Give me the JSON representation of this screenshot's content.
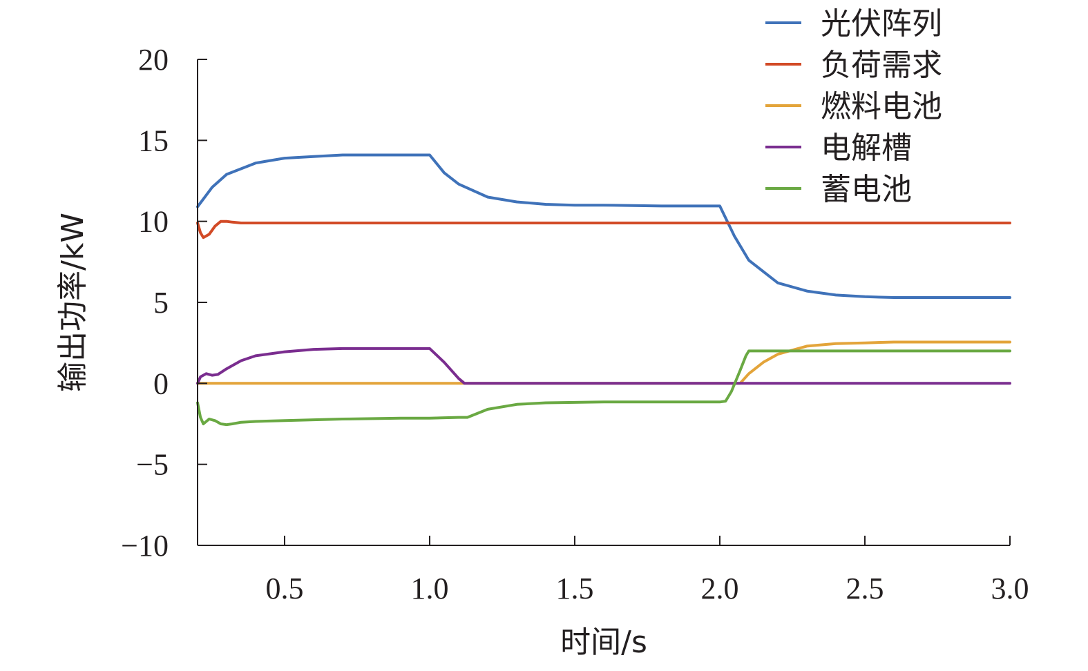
{
  "chart_data": {
    "type": "line",
    "xlabel": "时间/s",
    "ylabel": "输出功率/kW",
    "xlim": [
      0.2,
      3.0
    ],
    "ylim": [
      -10,
      20
    ],
    "xticks": [
      "0.5",
      "1.0",
      "1.5",
      "2.0",
      "2.5",
      "3.0"
    ],
    "xtick_values": [
      0.5,
      1.0,
      1.5,
      2.0,
      2.5,
      3.0
    ],
    "yticks": [
      "−10",
      "−5",
      "0",
      "5",
      "10",
      "15",
      "20"
    ],
    "ytick_values": [
      -10,
      -5,
      0,
      5,
      10,
      15,
      20
    ],
    "grid": false,
    "legend_position": "top-right",
    "series": [
      {
        "name": "光伏阵列",
        "color": "#3f72b9",
        "x": [
          0.2,
          0.25,
          0.3,
          0.4,
          0.5,
          0.6,
          0.7,
          0.8,
          0.9,
          1.0,
          1.05,
          1.1,
          1.2,
          1.3,
          1.4,
          1.5,
          1.6,
          1.8,
          2.0,
          2.05,
          2.1,
          2.2,
          2.3,
          2.4,
          2.5,
          2.6,
          2.8,
          3.0
        ],
        "y": [
          10.9,
          12.1,
          12.9,
          13.6,
          13.9,
          14.0,
          14.1,
          14.1,
          14.1,
          14.1,
          13.0,
          12.3,
          11.5,
          11.2,
          11.05,
          11.0,
          11.0,
          10.95,
          10.95,
          9.1,
          7.6,
          6.2,
          5.7,
          5.45,
          5.35,
          5.3,
          5.3,
          5.3
        ]
      },
      {
        "name": "负荷需求",
        "color": "#d24a26",
        "x": [
          0.2,
          0.21,
          0.22,
          0.24,
          0.26,
          0.28,
          0.3,
          0.32,
          0.35,
          0.4,
          0.5,
          0.75,
          1.0,
          1.25,
          1.5,
          1.75,
          2.0,
          2.25,
          2.5,
          2.75,
          3.0
        ],
        "y": [
          9.9,
          9.3,
          9.0,
          9.2,
          9.7,
          10.0,
          10.0,
          9.95,
          9.9,
          9.9,
          9.9,
          9.9,
          9.9,
          9.9,
          9.9,
          9.9,
          9.9,
          9.9,
          9.9,
          9.9,
          9.9
        ]
      },
      {
        "name": "燃料电池",
        "color": "#e3a43a",
        "x": [
          0.2,
          1.0,
          1.5,
          2.0,
          2.07,
          2.1,
          2.15,
          2.2,
          2.3,
          2.4,
          2.5,
          2.6,
          2.8,
          3.0
        ],
        "y": [
          0.0,
          0.0,
          0.0,
          0.0,
          0.0,
          0.6,
          1.3,
          1.8,
          2.3,
          2.45,
          2.5,
          2.55,
          2.55,
          2.55
        ]
      },
      {
        "name": "电解槽",
        "color": "#7a2d8f",
        "x": [
          0.2,
          0.21,
          0.23,
          0.25,
          0.27,
          0.3,
          0.35,
          0.4,
          0.5,
          0.6,
          0.7,
          0.8,
          0.9,
          1.0,
          1.05,
          1.1,
          1.12,
          1.5,
          2.0,
          2.5,
          3.0
        ],
        "y": [
          0.0,
          0.4,
          0.6,
          0.5,
          0.55,
          0.9,
          1.4,
          1.7,
          1.95,
          2.1,
          2.15,
          2.15,
          2.15,
          2.15,
          1.3,
          0.3,
          0.0,
          0.0,
          0.0,
          0.0,
          0.0
        ]
      },
      {
        "name": "蓄电池",
        "color": "#6aa943",
        "x": [
          0.2,
          0.21,
          0.22,
          0.24,
          0.26,
          0.28,
          0.3,
          0.32,
          0.35,
          0.4,
          0.5,
          0.7,
          0.9,
          1.0,
          1.1,
          1.13,
          1.2,
          1.3,
          1.4,
          1.6,
          1.8,
          2.0,
          2.02,
          2.04,
          2.07,
          2.09,
          2.1,
          2.12,
          2.2,
          2.4,
          2.6,
          3.0
        ],
        "y": [
          -1.2,
          -2.1,
          -2.5,
          -2.2,
          -2.3,
          -2.5,
          -2.55,
          -2.5,
          -2.4,
          -2.35,
          -2.3,
          -2.2,
          -2.15,
          -2.15,
          -2.1,
          -2.1,
          -1.6,
          -1.3,
          -1.2,
          -1.15,
          -1.15,
          -1.15,
          -1.1,
          -0.5,
          0.8,
          1.7,
          2.0,
          2.0,
          2.0,
          2.0,
          2.0,
          2.0
        ]
      }
    ]
  }
}
